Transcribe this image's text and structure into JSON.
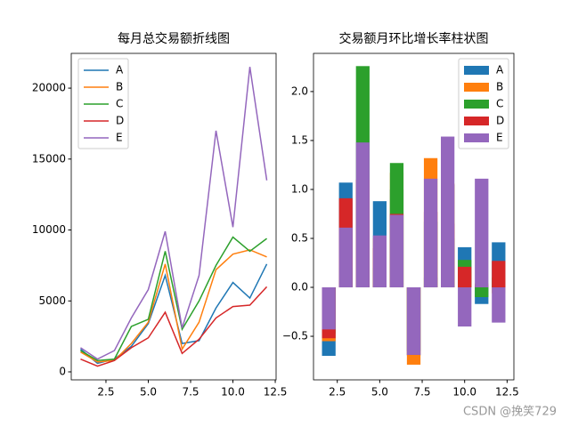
{
  "chart_data": [
    {
      "type": "line",
      "title": "每月总交易额折线图",
      "x": [
        1,
        2,
        3,
        4,
        5,
        6,
        7,
        8,
        9,
        10,
        11,
        12
      ],
      "xlim": [
        0.45,
        12.55
      ],
      "xticks": [
        2.5,
        {
          "value": 5,
          "label": "5.0"
        },
        7.5,
        {
          "value": 10,
          "label": "10.0"
        },
        12.5
      ],
      "ylim": [
        -564,
        22450
      ],
      "yticks": [
        0,
        5000,
        10000,
        15000,
        20000
      ],
      "legend": "upper left",
      "series": [
        {
          "name": "A",
          "color": "#1f77b4",
          "values": [
            1600,
            600,
            900,
            1800,
            3400,
            6800,
            2000,
            2200,
            4500,
            6300,
            5200,
            7600
          ]
        },
        {
          "name": "B",
          "color": "#ff7f0e",
          "values": [
            1400,
            700,
            800,
            2000,
            3500,
            7600,
            1600,
            3500,
            7200,
            8300,
            8600,
            8100
          ]
        },
        {
          "name": "C",
          "color": "#2ca02c",
          "values": [
            1500,
            800,
            900,
            3200,
            3700,
            8500,
            3000,
            5000,
            7500,
            9500,
            8500,
            9400
          ]
        },
        {
          "name": "D",
          "color": "#d62728",
          "values": [
            900,
            400,
            800,
            1700,
            2400,
            4200,
            1300,
            2300,
            3800,
            4600,
            4700,
            6000
          ]
        },
        {
          "name": "E",
          "color": "#9467bd",
          "values": [
            1700,
            900,
            1500,
            3800,
            5800,
            9900,
            3100,
            6800,
            17000,
            10200,
            21500,
            13500
          ]
        }
      ]
    },
    {
      "type": "bar",
      "title": "交易额月环比增长率柱状图",
      "x": [
        2,
        3,
        4,
        5,
        6,
        7,
        8,
        9,
        10,
        11,
        12
      ],
      "xlim": [
        1.1,
        12.9
      ],
      "xticks": [
        2.5,
        {
          "value": 5,
          "label": "5.0"
        },
        7.5,
        {
          "value": 10,
          "label": "10.0"
        },
        12.5
      ],
      "ylim": [
        -0.945,
        2.39
      ],
      "yticks": [
        {
          "value": -0.5,
          "label": "−0.5"
        },
        {
          "value": 0,
          "label": "0.0"
        },
        0.5,
        {
          "value": 1,
          "label": "1.0"
        },
        1.5,
        {
          "value": 2,
          "label": "2.0"
        }
      ],
      "legend": "upper right",
      "series": [
        {
          "name": "A",
          "color": "#1f77b4",
          "values": [
            -0.7,
            1.07,
            1.0,
            0.88,
            1.0,
            -0.7,
            0.1,
            1.05,
            0.41,
            -0.17,
            0.46
          ]
        },
        {
          "name": "B",
          "color": "#ff7f0e",
          "values": [
            -0.55,
            0.3,
            1.1,
            0.5,
            1.17,
            -0.79,
            1.32,
            1.06,
            0.15,
            0.04,
            -0.06
          ]
        },
        {
          "name": "C",
          "color": "#2ca02c",
          "values": [
            -0.47,
            0.2,
            2.26,
            0.2,
            1.27,
            -0.65,
            0.67,
            0.5,
            0.28,
            -0.1,
            0.1
          ]
        },
        {
          "name": "D",
          "color": "#d62728",
          "values": [
            -0.52,
            0.91,
            1.1,
            0.4,
            0.75,
            -0.69,
            0.77,
            0.65,
            0.21,
            0.02,
            0.27
          ]
        },
        {
          "name": "E",
          "color": "#9467bd",
          "values": [
            -0.43,
            0.61,
            1.48,
            0.53,
            0.74,
            -0.69,
            1.11,
            1.54,
            -0.4,
            1.11,
            -0.36
          ]
        }
      ]
    }
  ],
  "watermark": "CSDN @挽笑729"
}
